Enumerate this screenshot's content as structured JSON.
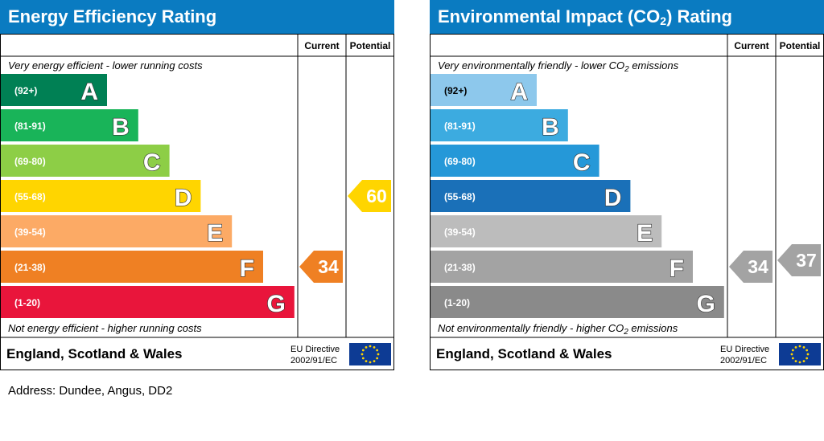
{
  "address": "Address: Dundee, Angus, DD2",
  "chart_data": [
    {
      "type": "bar",
      "id": "ee",
      "title": "Energy Efficiency Rating",
      "title_sub": "",
      "title_suffix": "",
      "col_current": "Current",
      "col_potential": "Potential",
      "top_caption": "Very energy efficient - lower running costs",
      "bottom_caption": "Not energy efficient - higher running costs",
      "region": "England, Scotland & Wales",
      "directive_line1": "EU Directive",
      "directive_line2": "2002/91/EC",
      "bands": [
        {
          "letter": "A",
          "range": "(92+)",
          "color": "#008054"
        },
        {
          "letter": "B",
          "range": "(81-91)",
          "color": "#19b459"
        },
        {
          "letter": "C",
          "range": "(69-80)",
          "color": "#8dce46"
        },
        {
          "letter": "D",
          "range": "(55-68)",
          "color": "#ffd500"
        },
        {
          "letter": "E",
          "range": "(39-54)",
          "color": "#fcaa65"
        },
        {
          "letter": "F",
          "range": "(21-38)",
          "color": "#ef8023"
        },
        {
          "letter": "G",
          "range": "(1-20)",
          "color": "#e9153b"
        }
      ],
      "current": {
        "value": 34,
        "band": "F",
        "color": "#ef8023"
      },
      "potential": {
        "value": 60,
        "band": "D",
        "color": "#ffd500"
      }
    },
    {
      "type": "bar",
      "id": "ei",
      "title": "Environmental Impact (CO",
      "title_sub": "2",
      "title_suffix": ") Rating",
      "col_current": "Current",
      "col_potential": "Potential",
      "top_caption": "Very environmentally friendly - lower CO2 emissions",
      "bottom_caption": "Not environmentally friendly - higher CO2 emissions",
      "region": "England, Scotland & Wales",
      "directive_line1": "EU Directive",
      "directive_line2": "2002/91/EC",
      "bands": [
        {
          "letter": "A",
          "range": "(92+)",
          "color": "#8dc8ec"
        },
        {
          "letter": "B",
          "range": "(81-91)",
          "color": "#3cabe0"
        },
        {
          "letter": "C",
          "range": "(69-80)",
          "color": "#2598d8"
        },
        {
          "letter": "D",
          "range": "(55-68)",
          "color": "#1a70b8"
        },
        {
          "letter": "E",
          "range": "(39-54)",
          "color": "#bcbcbc"
        },
        {
          "letter": "F",
          "range": "(21-38)",
          "color": "#a3a3a3"
        },
        {
          "letter": "G",
          "range": "(1-20)",
          "color": "#8a8a8a"
        }
      ],
      "current": {
        "value": 34,
        "band": "F",
        "color": "#a3a3a3"
      },
      "potential": {
        "value": 37,
        "band": "F",
        "color": "#a3a3a3"
      }
    }
  ]
}
